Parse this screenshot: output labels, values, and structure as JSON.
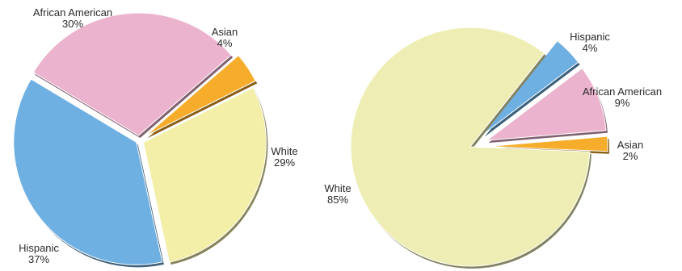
{
  "chart_data": [
    {
      "type": "pie",
      "slices": [
        {
          "label": "African American",
          "pct_label": "30%",
          "value": 30,
          "color": "#ebb3cd"
        },
        {
          "label": "Asian",
          "pct_label": "4%",
          "value": 4,
          "color": "#f6ad2c"
        },
        {
          "label": "White",
          "pct_label": "29%",
          "value": 29,
          "color": "#f3efa8"
        },
        {
          "label": "Hispanic",
          "pct_label": "37%",
          "value": 37,
          "color": "#6fb0e2"
        }
      ]
    },
    {
      "type": "pie",
      "slices": [
        {
          "label": "Hispanic",
          "pct_label": "4%",
          "value": 4,
          "color": "#6fb0e2"
        },
        {
          "label": "African American",
          "pct_label": "9%",
          "value": 9,
          "color": "#ebb3cd"
        },
        {
          "label": "Asian",
          "pct_label": "2%",
          "value": 2,
          "color": "#f6ad2c"
        },
        {
          "label": "White",
          "pct_label": "85%",
          "value": 85,
          "color": "#eeeeb4"
        }
      ]
    }
  ]
}
